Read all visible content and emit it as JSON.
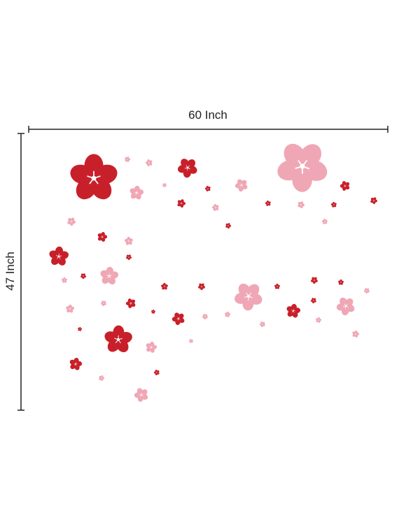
{
  "width_label": "60 Inch",
  "height_label": "47 Inch"
}
